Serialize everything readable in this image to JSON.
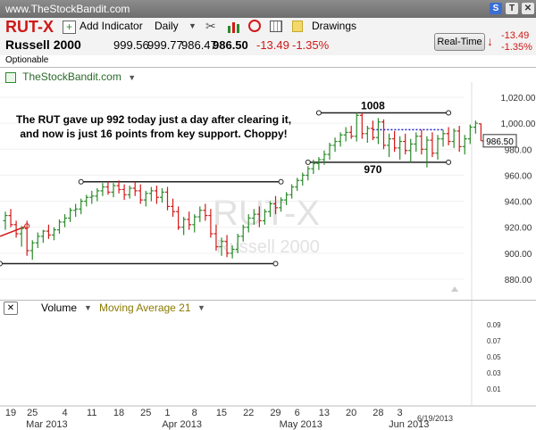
{
  "header": {
    "site": "www.TheStockBandit.com"
  },
  "toolbar": {
    "symbol": "RUT-X",
    "add_indicator": "Add Indicator",
    "interval": "Daily",
    "drawings": "Drawings"
  },
  "quote": {
    "name": "Russell 2000",
    "open": "999.56",
    "high": "999.77",
    "low": "986.47",
    "last": "986.50",
    "change": "-13.49",
    "change_pct": "-1.35%",
    "optionable": "Optionable",
    "realtime_label": "Real-Time",
    "rt_change": "-13.49",
    "rt_change_pct": "-1.35%"
  },
  "panel": {
    "title": "TheStockBandit.com"
  },
  "volume": {
    "label": "Volume",
    "ma_label": "Moving Average 21"
  },
  "colors": {
    "up": "#2a8a2a",
    "down": "#d41818",
    "level": "#222222",
    "dotted": "#2222cc",
    "watermark": "#e2e2e2"
  },
  "chart_data": {
    "type": "ohlc",
    "watermark_symbol": "RUT-X",
    "watermark_name": "Russell 2000",
    "annotation": "The RUT gave up 992 today just a day after clearing it,\nand now is just 16 points from key support. Choppy!",
    "level_labels": [
      {
        "text": "1008",
        "value": 1008
      },
      {
        "text": "970",
        "value": 970
      }
    ],
    "last_price_label": "986.50",
    "price_axis": {
      "min": 870,
      "max": 1030,
      "ticks": [
        "880.00",
        "900.00",
        "920.00",
        "940.00",
        "960.00",
        "980.00",
        "1,000.00",
        "1,020.00"
      ],
      "tick_values": [
        880,
        900,
        920,
        940,
        960,
        980,
        1000,
        1020
      ]
    },
    "volume_axis": {
      "ticks": [
        "0.09",
        "0.07",
        "0.05",
        "0.03",
        "0.01"
      ],
      "tick_values": [
        0.09,
        0.07,
        0.05,
        0.03,
        0.01
      ]
    },
    "date_labels": [
      {
        "text": "19",
        "i": 0
      },
      {
        "text": "25",
        "i": 4
      },
      {
        "text": "4",
        "i": 10
      },
      {
        "text": "11",
        "i": 15
      },
      {
        "text": "18",
        "i": 20
      },
      {
        "text": "25",
        "i": 25
      },
      {
        "text": "1",
        "i": 29
      },
      {
        "text": "8",
        "i": 34
      },
      {
        "text": "15",
        "i": 39
      },
      {
        "text": "22",
        "i": 44
      },
      {
        "text": "29",
        "i": 49
      },
      {
        "text": "6",
        "i": 53
      },
      {
        "text": "13",
        "i": 58
      },
      {
        "text": "20",
        "i": 63
      },
      {
        "text": "28",
        "i": 68
      },
      {
        "text": "3",
        "i": 72
      }
    ],
    "month_labels": [
      {
        "text": "Mar 2013",
        "i": 8
      },
      {
        "text": "Apr 2013",
        "i": 33
      },
      {
        "text": "May 2013",
        "i": 55
      },
      {
        "text": "Jun 2013",
        "i": 75
      }
    ],
    "current_date": "6/19/2013",
    "bars": [
      [
        925,
        932,
        918,
        929
      ],
      [
        929,
        934,
        920,
        922
      ],
      [
        922,
        925,
        912,
        915
      ],
      [
        915,
        921,
        905,
        919
      ],
      [
        919,
        925,
        898,
        902
      ],
      [
        902,
        910,
        895,
        908
      ],
      [
        908,
        916,
        904,
        913
      ],
      [
        913,
        918,
        908,
        917
      ],
      [
        917,
        922,
        911,
        914
      ],
      [
        914,
        920,
        910,
        918
      ],
      [
        918,
        926,
        915,
        924
      ],
      [
        924,
        930,
        920,
        927
      ],
      [
        927,
        935,
        924,
        933
      ],
      [
        933,
        938,
        928,
        934
      ],
      [
        934,
        942,
        930,
        940
      ],
      [
        940,
        945,
        936,
        943
      ],
      [
        943,
        948,
        938,
        944
      ],
      [
        944,
        950,
        940,
        948
      ],
      [
        948,
        954,
        944,
        951
      ],
      [
        951,
        955,
        945,
        947
      ],
      [
        947,
        954,
        943,
        952
      ],
      [
        952,
        956,
        946,
        949
      ],
      [
        949,
        953,
        941,
        945
      ],
      [
        945,
        952,
        942,
        950
      ],
      [
        950,
        955,
        944,
        948
      ],
      [
        948,
        953,
        938,
        941
      ],
      [
        941,
        948,
        936,
        946
      ],
      [
        946,
        951,
        940,
        948
      ],
      [
        948,
        952,
        938,
        943
      ],
      [
        943,
        950,
        939,
        947
      ],
      [
        947,
        951,
        933,
        936
      ],
      [
        936,
        942,
        928,
        932
      ],
      [
        932,
        936,
        918,
        920
      ],
      [
        920,
        928,
        914,
        926
      ],
      [
        926,
        932,
        918,
        922
      ],
      [
        922,
        930,
        916,
        928
      ],
      [
        928,
        936,
        924,
        933
      ],
      [
        933,
        938,
        925,
        929
      ],
      [
        929,
        934,
        912,
        915
      ],
      [
        915,
        922,
        902,
        905
      ],
      [
        905,
        912,
        898,
        909
      ],
      [
        909,
        914,
        897,
        900
      ],
      [
        900,
        906,
        896,
        903
      ],
      [
        903,
        915,
        900,
        913
      ],
      [
        913,
        922,
        909,
        920
      ],
      [
        920,
        930,
        916,
        927
      ],
      [
        927,
        934,
        922,
        930
      ],
      [
        930,
        936,
        920,
        925
      ],
      [
        925,
        934,
        922,
        932
      ],
      [
        932,
        940,
        928,
        938
      ],
      [
        938,
        944,
        930,
        935
      ],
      [
        935,
        943,
        932,
        941
      ],
      [
        941,
        947,
        937,
        945
      ],
      [
        945,
        953,
        942,
        951
      ],
      [
        951,
        958,
        948,
        956
      ],
      [
        956,
        962,
        952,
        960
      ],
      [
        960,
        967,
        956,
        965
      ],
      [
        965,
        972,
        961,
        969
      ],
      [
        969,
        974,
        964,
        972
      ],
      [
        972,
        979,
        968,
        976
      ],
      [
        976,
        985,
        972,
        983
      ],
      [
        983,
        989,
        978,
        986
      ],
      [
        986,
        993,
        982,
        991
      ],
      [
        991,
        997,
        986,
        993
      ],
      [
        993,
        998,
        988,
        990
      ],
      [
        990,
        1008,
        986,
        1006
      ],
      [
        1006,
        1008,
        988,
        992
      ],
      [
        992,
        998,
        985,
        996
      ],
      [
        996,
        1002,
        987,
        989
      ],
      [
        989,
        1004,
        984,
        1001
      ],
      [
        1001,
        1003,
        980,
        983
      ],
      [
        983,
        992,
        974,
        988
      ],
      [
        988,
        994,
        978,
        981
      ],
      [
        981,
        990,
        972,
        986
      ],
      [
        986,
        992,
        976,
        979
      ],
      [
        979,
        988,
        970,
        984
      ],
      [
        984,
        993,
        978,
        990
      ],
      [
        990,
        995,
        976,
        980
      ],
      [
        980,
        990,
        966,
        987
      ],
      [
        987,
        993,
        974,
        977
      ],
      [
        977,
        991,
        972,
        988
      ],
      [
        988,
        995,
        982,
        992
      ],
      [
        992,
        997,
        983,
        986
      ],
      [
        986,
        996,
        981,
        994
      ],
      [
        994,
        998,
        978,
        982
      ],
      [
        982,
        991,
        976,
        988
      ],
      [
        988,
        999,
        984,
        997
      ],
      [
        997,
        1002,
        992,
        1000
      ],
      [
        999.56,
        999.77,
        986.47,
        986.5
      ]
    ]
  }
}
